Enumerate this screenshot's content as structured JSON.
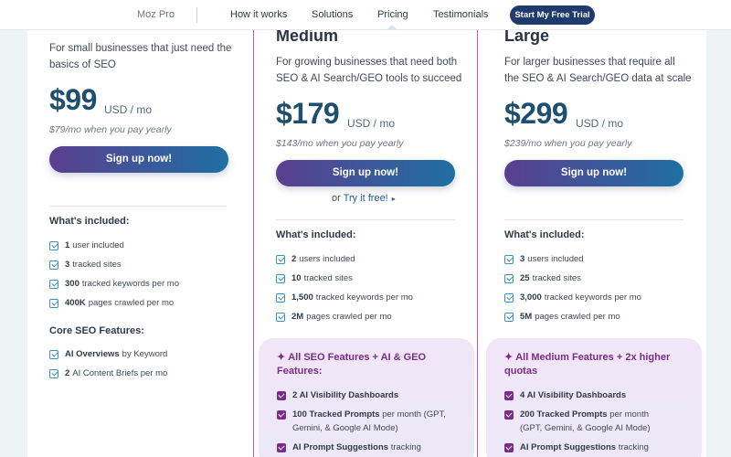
{
  "nav": {
    "brand": "Moz Pro",
    "links": [
      "How it works",
      "Solutions",
      "Pricing",
      "Testimonials"
    ],
    "cta": "Start My Free Trial"
  },
  "plans": {
    "small": {
      "desc": [
        "For small businesses that just need the",
        "basics of SEO"
      ],
      "price": "$99",
      "unit": "USD / mo",
      "yearly": "$79/mo when you pay yearly",
      "signup": "Sign up now!",
      "included_title": "What's included:",
      "included": [
        {
          "bold": "1",
          "text": "user included"
        },
        {
          "bold": "3",
          "text": "tracked sites"
        },
        {
          "bold": "300",
          "text": "tracked keywords per mo"
        },
        {
          "bold": "400K",
          "text": "pages crawled per mo"
        }
      ],
      "core_title": "Core SEO Features:",
      "core": [
        {
          "bold": "AI Overviews",
          "text": "by Keyword"
        },
        {
          "bold": "2",
          "text": "AI Content Briefs per mo"
        }
      ]
    },
    "medium": {
      "name": "Medium",
      "desc": [
        "For growing businesses that need both",
        "SEO & AI Search/GEO tools to succeed"
      ],
      "price": "$179",
      "unit": "USD / mo",
      "yearly": "$143/mo when you pay yearly",
      "signup": "Sign up now!",
      "try_prefix": "or",
      "try_link": "Try it free!",
      "included_title": "What's included:",
      "included": [
        {
          "bold": "2",
          "text": "users included"
        },
        {
          "bold": "10",
          "text": "tracked sites"
        },
        {
          "bold": "1,500",
          "text": "tracked keywords per mo"
        },
        {
          "bold": "2M",
          "text": "pages crawled per mo"
        }
      ],
      "ai_title": [
        "All SEO Features + AI & GEO",
        "Features:"
      ],
      "ai_features": [
        {
          "bold": "2 AI Visibility Dashboards",
          "text": ""
        },
        {
          "bold": "100 Tracked Prompts",
          "text": "per month (GPT,",
          "text2": "Gemini, & Google AI Mode)"
        },
        {
          "bold": "AI Prompt Suggestions",
          "text": "tracking"
        }
      ]
    },
    "large": {
      "name": "Large",
      "desc": [
        "For larger businesses that require all",
        "the SEO & AI Search/GEO data at scale"
      ],
      "price": "$299",
      "unit": "USD / mo",
      "yearly": "$239/mo when you pay yearly",
      "signup": "Sign up now!",
      "included_title": "What's included:",
      "included": [
        {
          "bold": "3",
          "text": "users included"
        },
        {
          "bold": "25",
          "text": "tracked sites"
        },
        {
          "bold": "3,000",
          "text": "tracked keywords per mo"
        },
        {
          "bold": "5M",
          "text": "pages crawled per mo"
        }
      ],
      "ai_title": [
        "All Medium Features + 2x higher",
        "quotas"
      ],
      "ai_features": [
        {
          "bold": "4 AI Visibility Dashboards",
          "text": ""
        },
        {
          "bold": "200 Tracked Prompts",
          "text": "per month",
          "text2": "(GPT, Gemini, & Google AI Mode)"
        },
        {
          "bold": "AI Prompt Suggestions",
          "text": "tracking"
        }
      ]
    }
  },
  "colors": {
    "accent_purple": "#7a2c8c",
    "price_blue": "#1d4f6e",
    "button_gradient_start": "#5a3f8f",
    "button_gradient_end": "#1f6fa3",
    "nav_cta": "#1f3b6e"
  }
}
